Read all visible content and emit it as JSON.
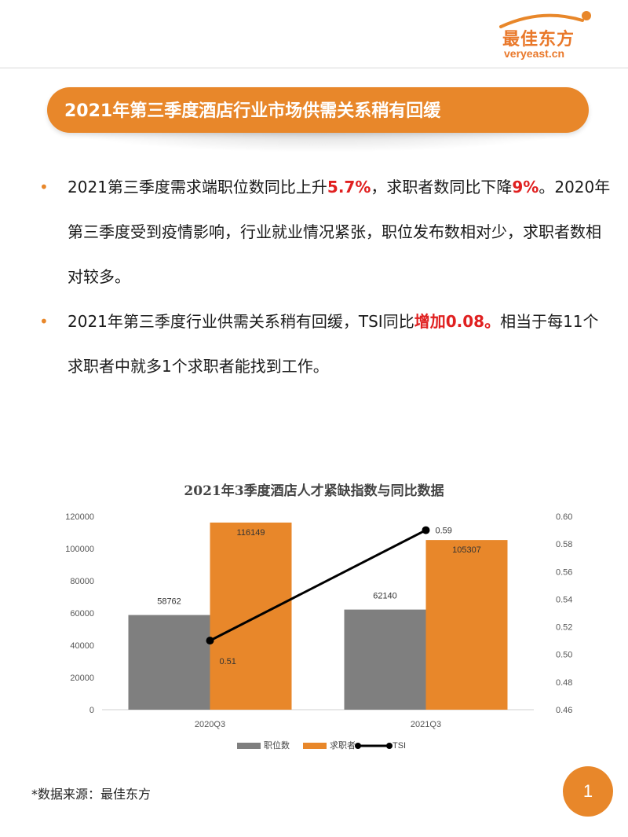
{
  "logo": {
    "cn": "最佳东方",
    "en": "veryeast.cn"
  },
  "banner": {
    "title": "2021年第三季度酒店行业市场供需关系稍有回缓"
  },
  "bullets": [
    {
      "segments": [
        {
          "text": "2021第三季度需求端职位数同比上升",
          "hl": false
        },
        {
          "text": "5.7%",
          "hl": true
        },
        {
          "text": "，求职者数同比下降",
          "hl": false
        },
        {
          "text": "9%",
          "hl": true
        },
        {
          "text": "。2020年第三季度受到疫情影响，行业就业情况紧张，职位发布数相对少，求职者数相对较多。",
          "hl": false
        }
      ]
    },
    {
      "segments": [
        {
          "text": "2021年第三季度行业供需关系稍有回缓，TSI同比",
          "hl": false
        },
        {
          "text": "增加0.08。",
          "hl": true
        },
        {
          "text": "相当于每11个求职者中就多1个求职者能找到工作。",
          "hl": false
        }
      ]
    }
  ],
  "colors": {
    "accent": "#e8872a",
    "highlight": "#e02020",
    "bar_positions": "#7f7f7f",
    "bar_seekers": "#e8872a",
    "line": "#000000"
  },
  "chart_data": {
    "type": "bar",
    "title": "2021年3季度酒店人才紧缺指数与同比数据",
    "categories": [
      "2020Q3",
      "2021Q3"
    ],
    "series": [
      {
        "name": "职位数",
        "type": "bar",
        "axis": "left",
        "values": [
          58762,
          62140
        ],
        "labels": [
          "58762",
          "62140"
        ]
      },
      {
        "name": "求职者",
        "type": "bar",
        "axis": "left",
        "values": [
          116149,
          105307
        ],
        "labels": [
          "116149",
          "105307"
        ]
      },
      {
        "name": "TSI",
        "type": "line",
        "axis": "right",
        "values": [
          0.51,
          0.59
        ],
        "labels": [
          "0.51",
          "0.59"
        ]
      }
    ],
    "ylim_left": [
      0,
      120000
    ],
    "yticks_left": [
      "0",
      "20000",
      "40000",
      "60000",
      "80000",
      "100000",
      "120000"
    ],
    "ylim_right": [
      0.46,
      0.6
    ],
    "yticks_right": [
      "0.46",
      "0.48",
      "0.50",
      "0.52",
      "0.54",
      "0.56",
      "0.58",
      "0.60"
    ],
    "legend_position": "bottom",
    "grid": false
  },
  "footer": {
    "source": "*数据来源：最佳东方",
    "page": "1"
  }
}
